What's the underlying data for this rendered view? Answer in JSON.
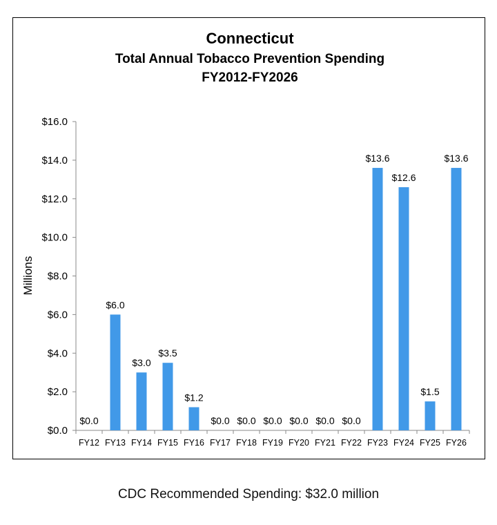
{
  "chart_data": {
    "type": "bar",
    "title": "Connecticut",
    "subtitle": [
      "Total Annual Tobacco Prevention Spending",
      "FY2012-FY2026"
    ],
    "ylabel": "Millions",
    "xlabel": "",
    "ylim": [
      0,
      16
    ],
    "yticks": [
      "$0.0",
      "$2.0",
      "$4.0",
      "$6.0",
      "$8.0",
      "$10.0",
      "$12.0",
      "$14.0",
      "$16.0"
    ],
    "categories": [
      "FY12",
      "FY13",
      "FY14",
      "FY15",
      "FY16",
      "FY17",
      "FY18",
      "FY19",
      "FY20",
      "FY21",
      "FY22",
      "FY23",
      "FY24",
      "FY25",
      "FY26"
    ],
    "values": [
      0,
      6.0,
      3.0,
      3.5,
      1.2,
      0,
      0,
      0,
      0,
      0,
      0,
      13.6,
      12.6,
      1.5,
      13.6
    ],
    "data_labels": [
      "$0.0",
      "$6.0",
      "$3.0",
      "$3.5",
      "$1.2",
      "$0.0",
      "$0.0",
      "$0.0",
      "$0.0",
      "$0.0",
      "$0.0",
      "$13.6",
      "$12.6",
      "$1.5",
      "$13.6"
    ],
    "bar_color": "#4199e8",
    "grid": false,
    "legend": "none"
  },
  "footer": "CDC Recommended Spending: $32.0 million"
}
